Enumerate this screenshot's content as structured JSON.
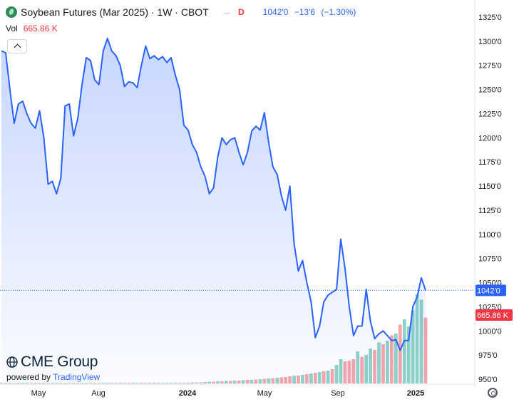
{
  "header": {
    "title": "Soybean Futures (Mar 2025) · 1W · CBOT",
    "dash": "–",
    "flag": "D",
    "last": "1042'0",
    "change": "−13'6",
    "change_pct": "(−1.30%)"
  },
  "volume": {
    "label": "Vol",
    "value": "665.86 K"
  },
  "branding": {
    "name": "CME Group",
    "powered_prefix": "powered by",
    "powered_brand": "TradingView"
  },
  "colors": {
    "line": "#2962ff",
    "vol_up": "#8fd3c6",
    "vol_down": "#f7a5ab",
    "last_badge": "#2962ff",
    "vol_badge": "#f23645"
  },
  "chart_data": {
    "type": "area",
    "title": "Soybean Futures (Mar 2025) · 1W · CBOT",
    "timeframe": "1W",
    "x_labels": [
      "May",
      "Aug",
      "2024",
      "May",
      "Sep",
      "2025"
    ],
    "y_ticks": [
      "1325'0",
      "1300'0",
      "1275'0",
      "1250'0",
      "1225'0",
      "1200'0",
      "1175'0",
      "1150'0",
      "1125'0",
      "1100'0",
      "1075'0",
      "1050'0",
      "1025'0",
      "1000'0",
      "975'0",
      "950'0"
    ],
    "ylim": [
      950,
      1325
    ],
    "last_price_label": "1042'0",
    "last_price_value": 1042,
    "volume_label": "665.86 K",
    "price_series": [
      1290,
      1288,
      1250,
      1215,
      1235,
      1238,
      1225,
      1215,
      1210,
      1228,
      1200,
      1152,
      1155,
      1142,
      1158,
      1233,
      1235,
      1202,
      1220,
      1255,
      1283,
      1280,
      1260,
      1255,
      1290,
      1303,
      1290,
      1285,
      1275,
      1253,
      1258,
      1257,
      1252,
      1275,
      1295,
      1282,
      1285,
      1281,
      1284,
      1278,
      1283,
      1265,
      1250,
      1213,
      1208,
      1193,
      1185,
      1170,
      1160,
      1142,
      1148,
      1180,
      1200,
      1193,
      1198,
      1200,
      1185,
      1172,
      1185,
      1207,
      1212,
      1208,
      1226,
      1195,
      1170,
      1162,
      1140,
      1125,
      1150,
      1090,
      1062,
      1073,
      1050,
      1030,
      993,
      1005,
      1030,
      1037,
      1040,
      1043,
      1095,
      1065,
      1025,
      995,
      1005,
      1005,
      1043,
      1010,
      992,
      997,
      1000,
      995,
      990,
      991,
      980,
      990,
      990,
      1025,
      1035,
      1055,
      1042
    ],
    "volume_series": [
      {
        "v": 1,
        "up": false
      },
      {
        "v": 1,
        "up": true
      },
      {
        "v": 1,
        "up": false
      },
      {
        "v": 1,
        "up": true
      },
      {
        "v": 1,
        "up": false
      },
      {
        "v": 1,
        "up": true
      },
      {
        "v": 1,
        "up": true
      },
      {
        "v": 1,
        "up": false
      },
      {
        "v": 1,
        "up": true
      },
      {
        "v": 1,
        "up": false
      },
      {
        "v": 1,
        "up": true
      },
      {
        "v": 1,
        "up": false
      },
      {
        "v": 1,
        "up": true
      },
      {
        "v": 1,
        "up": true
      },
      {
        "v": 1,
        "up": false
      },
      {
        "v": 1,
        "up": true
      },
      {
        "v": 1,
        "up": false
      },
      {
        "v": 1,
        "up": true
      },
      {
        "v": 1,
        "up": false
      },
      {
        "v": 1,
        "up": true
      },
      {
        "v": 1,
        "up": true
      },
      {
        "v": 1,
        "up": false
      },
      {
        "v": 1,
        "up": true
      },
      {
        "v": 1,
        "up": false
      },
      {
        "v": 1,
        "up": true
      },
      {
        "v": 1,
        "up": true
      },
      {
        "v": 1,
        "up": false
      },
      {
        "v": 1,
        "up": true
      },
      {
        "v": 1,
        "up": false
      },
      {
        "v": 1,
        "up": true
      },
      {
        "v": 1,
        "up": false
      },
      {
        "v": 1,
        "up": true
      },
      {
        "v": 1,
        "up": true
      },
      {
        "v": 1,
        "up": false
      },
      {
        "v": 1,
        "up": true
      },
      {
        "v": 1,
        "up": false
      },
      {
        "v": 1,
        "up": true
      },
      {
        "v": 1,
        "up": false
      },
      {
        "v": 1,
        "up": true
      },
      {
        "v": 1,
        "up": true
      },
      {
        "v": 2,
        "up": false
      },
      {
        "v": 2,
        "up": true
      },
      {
        "v": 2,
        "up": false
      },
      {
        "v": 2,
        "up": true
      },
      {
        "v": 2,
        "up": false
      },
      {
        "v": 3,
        "up": true
      },
      {
        "v": 3,
        "up": false
      },
      {
        "v": 3,
        "up": true
      },
      {
        "v": 4,
        "up": false
      },
      {
        "v": 5,
        "up": true
      },
      {
        "v": 5,
        "up": false
      },
      {
        "v": 6,
        "up": true
      },
      {
        "v": 6,
        "up": false
      },
      {
        "v": 7,
        "up": true
      },
      {
        "v": 7,
        "up": false
      },
      {
        "v": 8,
        "up": true
      },
      {
        "v": 8,
        "up": false
      },
      {
        "v": 9,
        "up": true
      },
      {
        "v": 10,
        "up": false
      },
      {
        "v": 10,
        "up": true
      },
      {
        "v": 11,
        "up": false
      },
      {
        "v": 12,
        "up": true
      },
      {
        "v": 13,
        "up": false
      },
      {
        "v": 14,
        "up": true
      },
      {
        "v": 15,
        "up": false
      },
      {
        "v": 16,
        "up": true
      },
      {
        "v": 17,
        "up": false
      },
      {
        "v": 18,
        "up": false
      },
      {
        "v": 20,
        "up": false
      },
      {
        "v": 22,
        "up": true
      },
      {
        "v": 22,
        "up": false
      },
      {
        "v": 24,
        "up": true
      },
      {
        "v": 26,
        "up": false
      },
      {
        "v": 28,
        "up": true
      },
      {
        "v": 30,
        "up": false
      },
      {
        "v": 32,
        "up": true
      },
      {
        "v": 34,
        "up": false
      },
      {
        "v": 36,
        "up": true
      },
      {
        "v": 40,
        "up": false
      },
      {
        "v": 52,
        "up": true
      },
      {
        "v": 68,
        "up": true
      },
      {
        "v": 62,
        "up": false
      },
      {
        "v": 64,
        "up": false
      },
      {
        "v": 68,
        "up": false
      },
      {
        "v": 90,
        "up": true
      },
      {
        "v": 75,
        "up": false
      },
      {
        "v": 80,
        "up": true
      },
      {
        "v": 98,
        "up": true
      },
      {
        "v": 94,
        "up": false
      },
      {
        "v": 115,
        "up": true
      },
      {
        "v": 110,
        "up": false
      },
      {
        "v": 120,
        "up": true
      },
      {
        "v": 135,
        "up": false
      },
      {
        "v": 140,
        "up": true
      },
      {
        "v": 165,
        "up": false
      },
      {
        "v": 180,
        "up": true
      },
      {
        "v": 160,
        "up": true
      },
      {
        "v": 205,
        "up": true
      },
      {
        "v": 250,
        "up": true
      },
      {
        "v": 235,
        "up": true
      },
      {
        "v": 185,
        "up": false
      }
    ]
  }
}
